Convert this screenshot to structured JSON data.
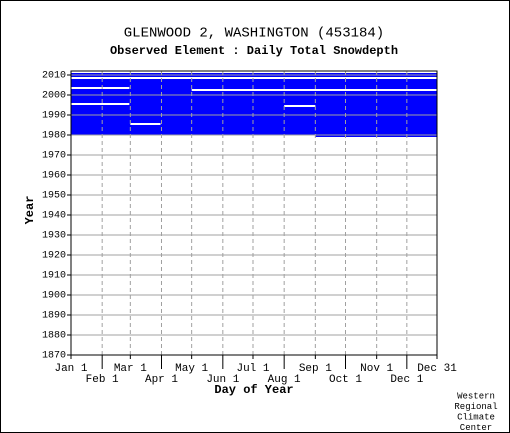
{
  "chart_data": {
    "type": "timeline",
    "title": "GLENWOOD 2, WASHINGTON   (453184)",
    "subtitle": "Observed Element : Daily Total Snowdepth",
    "xlabel": "Day of Year",
    "ylabel": "Year",
    "credit": [
      "Western",
      "Regional",
      "Climate",
      "Center"
    ],
    "xlim": [
      1,
      365
    ],
    "xticks": [
      {
        "value": 1,
        "label": "Jan 1"
      },
      {
        "value": 32,
        "label": "Feb 1"
      },
      {
        "value": 60,
        "label": "Mar 1"
      },
      {
        "value": 91,
        "label": "Apr 1"
      },
      {
        "value": 121,
        "label": "May 1"
      },
      {
        "value": 152,
        "label": "Jun 1"
      },
      {
        "value": 182,
        "label": "Jul 1"
      },
      {
        "value": 213,
        "label": "Aug 1"
      },
      {
        "value": 244,
        "label": "Sep 1"
      },
      {
        "value": 274,
        "label": "Oct 1"
      },
      {
        "value": 305,
        "label": "Nov 1"
      },
      {
        "value": 335,
        "label": "Dec 1"
      },
      {
        "value": 365,
        "label": "Dec 31"
      }
    ],
    "ylim": [
      1870,
      2012
    ],
    "yticks": [
      1870,
      1880,
      1890,
      1900,
      1910,
      1920,
      1930,
      1940,
      1950,
      1960,
      1970,
      1980,
      1990,
      2000,
      2010
    ],
    "grid": true,
    "coverage": {
      "color": "#0000ff",
      "blocks": [
        {
          "years": [
            1980,
            2010
          ],
          "days": [
            1,
            365
          ]
        },
        {
          "years": [
            1979,
            1979
          ],
          "days": [
            244,
            365
          ]
        }
      ]
    },
    "gaps": {
      "color": "#ffffff",
      "blocks": [
        {
          "years": [
            2008,
            2008
          ],
          "days": [
            1,
            365
          ]
        },
        {
          "years": [
            2003,
            2003
          ],
          "days": [
            1,
            59
          ]
        },
        {
          "years": [
            2002,
            2002
          ],
          "days": [
            121,
            365
          ]
        },
        {
          "years": [
            1995,
            1995
          ],
          "days": [
            1,
            59
          ]
        },
        {
          "years": [
            1994,
            1994
          ],
          "days": [
            213,
            244
          ]
        },
        {
          "years": [
            1985,
            1985
          ],
          "days": [
            60,
            90
          ]
        }
      ]
    }
  }
}
